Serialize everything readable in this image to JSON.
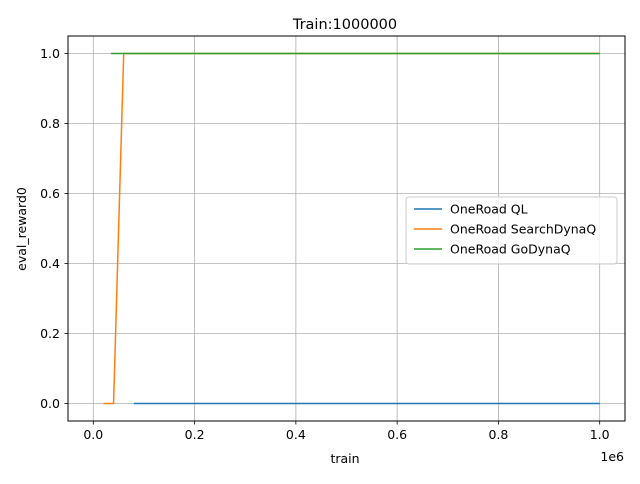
{
  "chart_data": {
    "type": "line",
    "title": "Train:1000000",
    "xlabel": "train",
    "ylabel": "eval_reward0",
    "x_offset_label": "1e6",
    "xlim": [
      -50000,
      1050000
    ],
    "ylim": [
      -0.05,
      1.05
    ],
    "x_ticks": [
      0,
      200000,
      400000,
      600000,
      800000,
      1000000
    ],
    "x_tick_labels": [
      "0.0",
      "0.2",
      "0.4",
      "0.6",
      "0.8",
      "1.0"
    ],
    "y_ticks": [
      0,
      0.2,
      0.4,
      0.6,
      0.8,
      1.0
    ],
    "y_tick_labels": [
      "0.0",
      "0.2",
      "0.4",
      "0.6",
      "0.8",
      "1.0"
    ],
    "grid": true,
    "legend_position": "center-right",
    "series": [
      {
        "name": "OneRoad QL",
        "color": "#1f77b4",
        "x": [
          80000,
          1000000
        ],
        "y": [
          0,
          0
        ]
      },
      {
        "name": "OneRoad SearchDynaQ",
        "color": "#ff7f0e",
        "x": [
          20000,
          40000,
          60000,
          1000000
        ],
        "y": [
          0,
          0,
          1,
          1
        ]
      },
      {
        "name": "OneRoad GoDynaQ",
        "color": "#2ca02c",
        "x": [
          35000,
          1000000
        ],
        "y": [
          1,
          1
        ]
      }
    ]
  }
}
